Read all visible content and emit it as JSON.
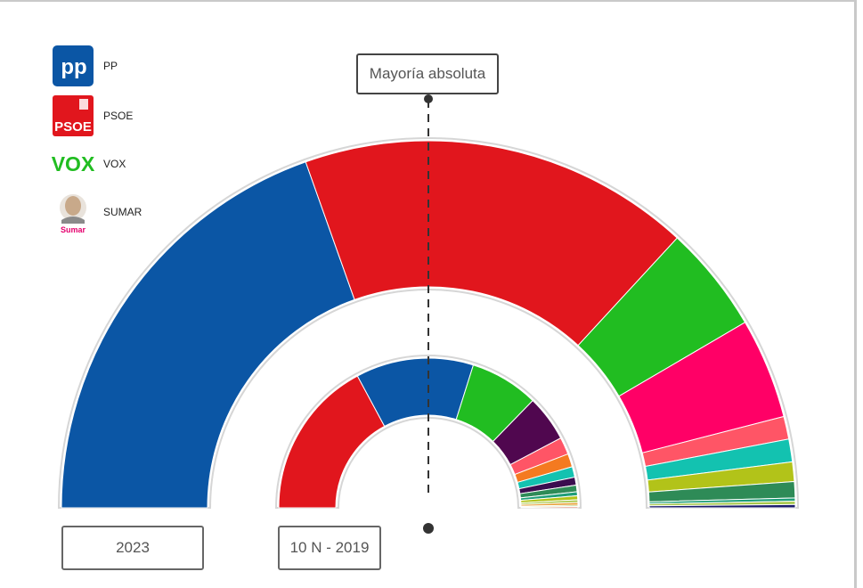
{
  "legend": [
    {
      "label": "PP",
      "icon": "pp-logo-icon",
      "color": "#0B56A5"
    },
    {
      "label": "PSOE",
      "icon": "psoe-logo-icon",
      "color": "#E1161D"
    },
    {
      "label": "VOX",
      "icon": "vox-logo-icon",
      "color": "#21BD21"
    },
    {
      "label": "SUMAR",
      "icon": "sumar-logo-icon",
      "color": "#FF0066"
    }
  ],
  "logos": {
    "pp": "pp",
    "psoe": "PSOE",
    "vox": "VOX",
    "sumar": "Sumar"
  },
  "majority": {
    "label": "Mayoría absoluta",
    "threshold": 176,
    "total_seats": 350
  },
  "years": {
    "current": "2023",
    "previous": "10 N - 2019"
  },
  "chart_data": [
    {
      "type": "semicircle-parliament",
      "label": "2023",
      "direction": "left-to-right",
      "segments": [
        {
          "party": "PP",
          "color": "#0B56A5",
          "seats": 137
        },
        {
          "party": "PSOE",
          "color": "#E1161D",
          "seats": 121
        },
        {
          "party": "VOX",
          "color": "#21BD21",
          "seats": 33
        },
        {
          "party": "SUMAR",
          "color": "#FF0066",
          "seats": 31
        },
        {
          "party": "",
          "color": "#FF5566",
          "seats": 7
        },
        {
          "party": "",
          "color": "#13C2B0",
          "seats": 7
        },
        {
          "party": "",
          "color": "#B2C319",
          "seats": 6
        },
        {
          "party": "",
          "color": "#2E8B57",
          "seats": 5
        },
        {
          "party": "",
          "color": "#1E9E78",
          "seats": 1
        },
        {
          "party": "",
          "color": "#A8C84A",
          "seats": 1
        },
        {
          "party": "",
          "color": "#1B1B6B",
          "seats": 1
        }
      ]
    },
    {
      "type": "semicircle-parliament",
      "label": "10 N - 2019",
      "direction": "left-to-right",
      "segments": [
        {
          "party": "PSOE",
          "color": "#E1161D",
          "seats": 120
        },
        {
          "party": "PP",
          "color": "#0B56A5",
          "seats": 89
        },
        {
          "party": "VOX",
          "color": "#21BD21",
          "seats": 52
        },
        {
          "party": "",
          "color": "#50074F",
          "seats": 35
        },
        {
          "party": "",
          "color": "#FF5566",
          "seats": 13
        },
        {
          "party": "",
          "color": "#F47A20",
          "seats": 10
        },
        {
          "party": "",
          "color": "#13C2B0",
          "seats": 8
        },
        {
          "party": "",
          "color": "#3B0D4F",
          "seats": 6
        },
        {
          "party": "",
          "color": "#2E8B57",
          "seats": 5
        },
        {
          "party": "",
          "color": "#1E9E78",
          "seats": 3
        },
        {
          "party": "",
          "color": "#B2C319",
          "seats": 3
        },
        {
          "party": "",
          "color": "#A8C84A",
          "seats": 2
        },
        {
          "party": "",
          "color": "#E8A23B",
          "seats": 2
        },
        {
          "party": "",
          "color": "#8FBF3F",
          "seats": 1
        },
        {
          "party": "",
          "color": "#D14A2A",
          "seats": 1
        }
      ]
    }
  ]
}
